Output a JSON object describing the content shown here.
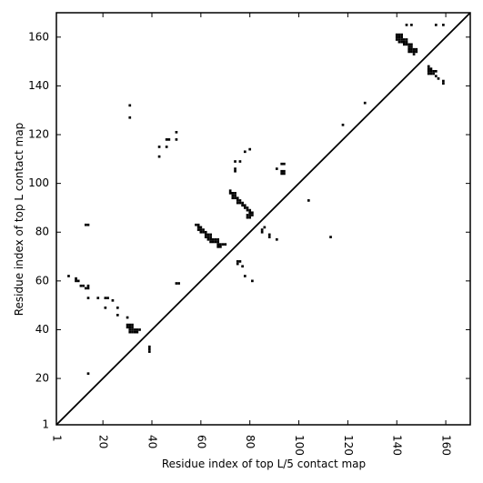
{
  "chart_data": {
    "type": "scatter",
    "title": "",
    "xlabel": "Residue index of top L/5 contact map",
    "ylabel": "Residue index of top L contact map",
    "xlim": [
      1,
      170
    ],
    "ylim": [
      1,
      170
    ],
    "x_ticks": [
      1,
      20,
      40,
      60,
      80,
      100,
      120,
      140,
      160
    ],
    "y_ticks": [
      1,
      20,
      40,
      60,
      80,
      100,
      120,
      140,
      160
    ],
    "x_tick_rotation_deg": -90,
    "grid": false,
    "legend": "none",
    "marker": "square",
    "marker_color": "#000000",
    "diagonal_line": {
      "from": [
        1,
        1
      ],
      "to": [
        170,
        170
      ],
      "color": "#000000"
    },
    "series": [
      {
        "label_side": "upper_triangle_top_L",
        "points": [
          [
            14,
            22
          ],
          [
            39,
            31
          ],
          [
            39,
            32
          ],
          [
            39,
            33
          ],
          [
            31,
            39
          ],
          [
            32,
            39
          ],
          [
            33,
            39
          ],
          [
            34,
            39
          ],
          [
            35,
            40
          ],
          [
            31,
            40
          ],
          [
            32,
            40
          ],
          [
            33,
            40
          ],
          [
            34,
            40
          ],
          [
            30,
            41
          ],
          [
            31,
            41
          ],
          [
            32,
            41
          ],
          [
            30,
            42
          ],
          [
            31,
            42
          ],
          [
            32,
            42
          ],
          [
            30,
            45
          ],
          [
            26,
            46
          ],
          [
            21,
            49
          ],
          [
            26,
            49
          ],
          [
            24,
            52
          ],
          [
            18,
            53
          ],
          [
            21,
            53
          ],
          [
            22,
            53
          ],
          [
            14,
            53
          ],
          [
            13,
            57
          ],
          [
            14,
            57
          ],
          [
            14,
            58
          ],
          [
            11,
            58
          ],
          [
            12,
            58
          ],
          [
            50,
            59
          ],
          [
            51,
            59
          ],
          [
            9,
            60
          ],
          [
            10,
            60
          ],
          [
            9,
            61
          ],
          [
            6,
            62
          ],
          [
            78,
            62
          ],
          [
            81,
            60
          ],
          [
            77,
            66
          ],
          [
            75,
            68
          ],
          [
            76,
            68
          ],
          [
            75,
            67
          ],
          [
            58,
            83
          ],
          [
            59,
            83
          ],
          [
            59,
            82
          ],
          [
            60,
            82
          ],
          [
            59,
            81
          ],
          [
            60,
            81
          ],
          [
            61,
            81
          ],
          [
            60,
            80
          ],
          [
            61,
            80
          ],
          [
            62,
            80
          ],
          [
            62,
            79
          ],
          [
            63,
            79
          ],
          [
            64,
            79
          ],
          [
            62,
            78
          ],
          [
            63,
            78
          ],
          [
            64,
            78
          ],
          [
            63,
            77
          ],
          [
            64,
            77
          ],
          [
            65,
            77
          ],
          [
            66,
            77
          ],
          [
            67,
            77
          ],
          [
            64,
            76
          ],
          [
            65,
            76
          ],
          [
            66,
            76
          ],
          [
            67,
            76
          ],
          [
            67,
            75
          ],
          [
            68,
            75
          ],
          [
            69,
            75
          ],
          [
            70,
            75
          ],
          [
            67,
            74
          ],
          [
            68,
            74
          ],
          [
            72,
            97
          ],
          [
            72,
            96
          ],
          [
            73,
            96
          ],
          [
            74,
            96
          ],
          [
            73,
            95
          ],
          [
            74,
            95
          ],
          [
            75,
            94
          ],
          [
            73,
            94
          ],
          [
            74,
            94
          ],
          [
            75,
            93
          ],
          [
            76,
            93
          ],
          [
            75,
            92
          ],
          [
            76,
            92
          ],
          [
            77,
            92
          ],
          [
            77,
            91
          ],
          [
            78,
            91
          ],
          [
            78,
            90
          ],
          [
            79,
            90
          ],
          [
            79,
            89
          ],
          [
            80,
            89
          ],
          [
            80,
            88
          ],
          [
            81,
            88
          ],
          [
            79,
            87
          ],
          [
            80,
            87
          ],
          [
            81,
            87
          ],
          [
            79,
            86
          ],
          [
            80,
            86
          ],
          [
            13,
            83
          ],
          [
            14,
            83
          ],
          [
            86,
            82
          ],
          [
            85,
            80
          ],
          [
            85,
            81
          ],
          [
            88,
            79
          ],
          [
            88,
            78
          ],
          [
            91,
            77
          ],
          [
            93,
            108
          ],
          [
            94,
            108
          ],
          [
            93,
            105
          ],
          [
            94,
            105
          ],
          [
            93,
            104
          ],
          [
            94,
            104
          ],
          [
            91,
            106
          ],
          [
            74,
            105
          ],
          [
            74,
            106
          ],
          [
            74,
            109
          ],
          [
            76,
            109
          ],
          [
            78,
            113
          ],
          [
            80,
            114
          ],
          [
            46,
            115
          ],
          [
            43,
            115
          ],
          [
            43,
            111
          ],
          [
            46,
            118
          ],
          [
            47,
            118
          ],
          [
            50,
            118
          ],
          [
            50,
            121
          ],
          [
            31,
            127
          ],
          [
            31,
            132
          ],
          [
            104,
            93
          ],
          [
            113,
            78
          ],
          [
            118,
            124
          ],
          [
            127,
            133
          ],
          [
            140,
            161
          ],
          [
            141,
            161
          ],
          [
            142,
            161
          ],
          [
            140,
            160
          ],
          [
            141,
            160
          ],
          [
            142,
            160
          ],
          [
            140,
            159
          ],
          [
            141,
            159
          ],
          [
            142,
            159
          ],
          [
            143,
            159
          ],
          [
            144,
            159
          ],
          [
            141,
            158
          ],
          [
            142,
            158
          ],
          [
            143,
            158
          ],
          [
            144,
            158
          ],
          [
            143,
            157
          ],
          [
            144,
            157
          ],
          [
            145,
            157
          ],
          [
            146,
            157
          ],
          [
            145,
            156
          ],
          [
            146,
            156
          ],
          [
            145,
            155
          ],
          [
            146,
            155
          ],
          [
            147,
            155
          ],
          [
            148,
            155
          ],
          [
            145,
            154
          ],
          [
            146,
            154
          ],
          [
            147,
            154
          ],
          [
            148,
            154
          ],
          [
            147,
            153
          ],
          [
            144,
            165
          ],
          [
            146,
            165
          ],
          [
            156,
            165
          ],
          [
            159,
            165
          ],
          [
            153,
            148
          ],
          [
            153,
            147
          ],
          [
            154,
            147
          ],
          [
            153,
            146
          ],
          [
            154,
            146
          ],
          [
            155,
            146
          ],
          [
            156,
            146
          ],
          [
            153,
            145
          ],
          [
            154,
            145
          ],
          [
            155,
            145
          ],
          [
            156,
            144
          ],
          [
            157,
            143
          ],
          [
            159,
            142
          ],
          [
            159,
            141
          ]
        ]
      }
    ]
  }
}
